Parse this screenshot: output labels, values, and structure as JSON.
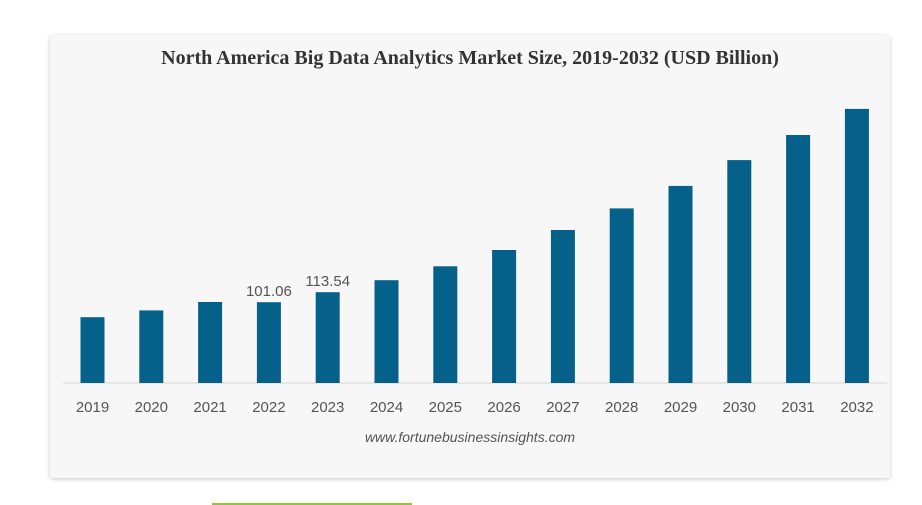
{
  "chart_data": {
    "type": "bar",
    "title": "North America Big Data Analytics Market Size, 2019-2032 (USD Billion)",
    "categories": [
      "2019",
      "2020",
      "2021",
      "2022",
      "2023",
      "2024",
      "2025",
      "2026",
      "2027",
      "2028",
      "2029",
      "2030",
      "2031",
      "2032"
    ],
    "values": [
      82.3,
      90.8,
      101.2,
      101.06,
      113.54,
      128.5,
      145.9,
      166.3,
      191.3,
      218.3,
      246.4,
      278.6,
      310.0,
      342.6
    ],
    "data_labels": [
      null,
      null,
      null,
      "101.06",
      "113.54",
      null,
      null,
      null,
      null,
      null,
      null,
      null,
      null,
      null
    ],
    "ylim": [
      0,
      360
    ],
    "xlabel": "",
    "ylabel": "",
    "grid": false,
    "bar_color": "#05618a",
    "source": "www.fortunebusinessinsights.com"
  }
}
